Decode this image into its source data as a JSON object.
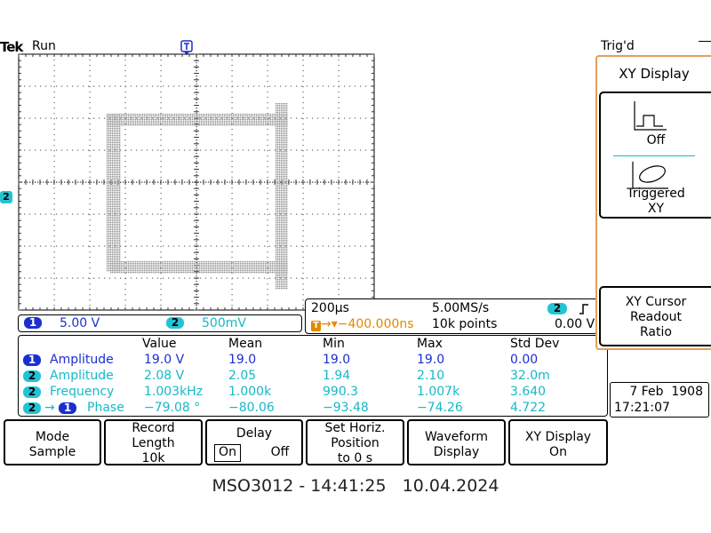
{
  "header": {
    "brand": "Tek",
    "run_state": "Run",
    "trigger_position_marker": "T",
    "trigger_state": "Trig'd",
    "ch2_ground_marker": "2"
  },
  "side_menu": {
    "title": "XY Display",
    "off_label": "Off",
    "triggered_xy_label": "Triggered\nXY",
    "cursor_readout_label": "XY Cursor\nReadout\nRatio"
  },
  "channels": {
    "ch1": {
      "number": "1",
      "scale": "5.00 V",
      "color": "#1b2fd1"
    },
    "ch2": {
      "number": "2",
      "scale": "500mV",
      "color": "#16b8c8"
    }
  },
  "timebase": {
    "horizontal_scale": "200µs",
    "sample_rate": "5.00MS/s",
    "trigger_offset": "→▾−400.000ns",
    "record_points": "10k points",
    "trigger_source": "2",
    "trigger_slope_icon": "rising-edge-icon",
    "trigger_level": "0.00 V"
  },
  "measurements": {
    "headers": [
      "Value",
      "Mean",
      "Min",
      "Max",
      "Std Dev"
    ],
    "rows": [
      {
        "source": "1",
        "source2": "",
        "name": "Amplitude",
        "value": "19.0 V",
        "mean": "19.0",
        "min": "19.0",
        "max": "19.0",
        "std": "0.00",
        "color": "#1b2fd1"
      },
      {
        "source": "2",
        "source2": "",
        "name": "Amplitude",
        "value": "2.08 V",
        "mean": "2.05",
        "min": "1.94",
        "max": "2.10",
        "std": "32.0m",
        "color": "#16b8c8"
      },
      {
        "source": "2",
        "source2": "",
        "name": "Frequency",
        "value": "1.003kHz",
        "mean": "1.000k",
        "min": "990.3",
        "max": "1.007k",
        "std": "3.640",
        "color": "#16b8c8"
      },
      {
        "source": "2",
        "source2": "1",
        "name": "Phase",
        "value": "−79.08 °",
        "mean": "−80.06",
        "min": "−93.48",
        "max": "−74.26",
        "std": "4.722",
        "color": "#16b8c8"
      }
    ]
  },
  "clock": {
    "date": "7 Feb  1908",
    "time": "17:21:07"
  },
  "softkeys": [
    {
      "label": "Mode\nSample"
    },
    {
      "label": "Record\nLength\n10k"
    },
    {
      "label": "Delay",
      "on": "On",
      "off": "Off"
    },
    {
      "label": "Set Horiz.\nPosition\nto 0 s"
    },
    {
      "label": "Waveform\nDisplay"
    },
    {
      "label": "XY Display\nOn"
    }
  ],
  "footer": {
    "caption": "MSO3012 - 14:41:25   10.04.2024"
  }
}
